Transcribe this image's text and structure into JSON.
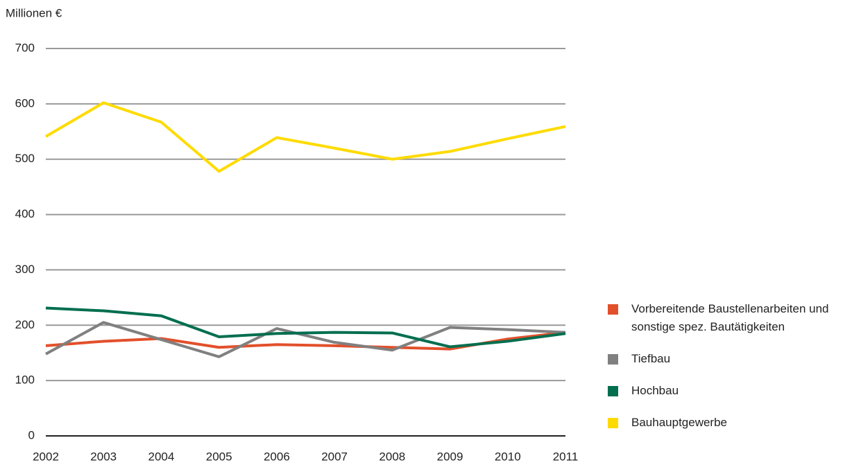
{
  "chart_data": {
    "type": "line",
    "y_label": "Millionen €",
    "categories": [
      "2002",
      "2003",
      "2004",
      "2005",
      "2006",
      "2007",
      "2008",
      "2009",
      "2010",
      "2011"
    ],
    "ylim": [
      0,
      700
    ],
    "yticks": [
      0,
      100,
      200,
      300,
      400,
      500,
      600,
      700
    ],
    "grid": true,
    "legend": "right",
    "series": [
      {
        "name": "Vorbereitende Baustellenarbeiten und sonstige spez. Bautätigkeiten",
        "color": "#e2502b",
        "values": [
          163,
          171,
          176,
          160,
          165,
          163,
          160,
          157,
          175,
          187
        ]
      },
      {
        "name": "Tiefbau",
        "color": "#808080",
        "values": [
          148,
          205,
          174,
          143,
          194,
          169,
          155,
          196,
          192,
          187
        ]
      },
      {
        "name": "Hochbau",
        "color": "#006e4f",
        "values": [
          231,
          226,
          217,
          179,
          185,
          187,
          186,
          161,
          171,
          185
        ]
      },
      {
        "name": "Bauhauptgewerbe",
        "color": "#fedb00",
        "values": [
          541,
          602,
          567,
          478,
          539,
          520,
          500,
          514,
          537,
          559
        ]
      }
    ]
  }
}
